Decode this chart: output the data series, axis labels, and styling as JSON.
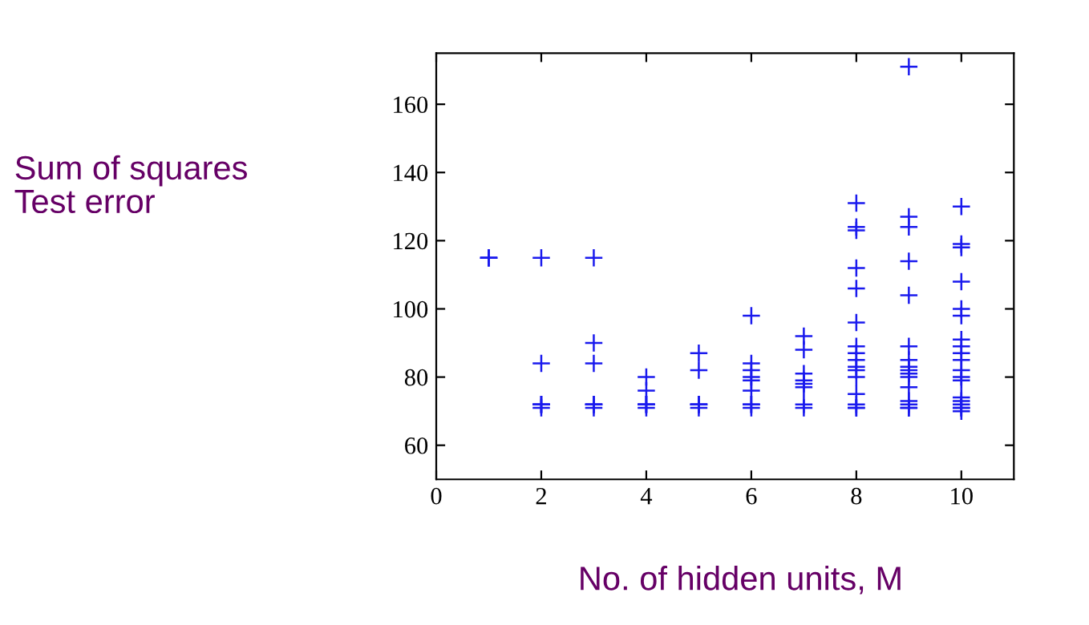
{
  "chart_data": {
    "type": "scatter",
    "xlabel": "No. of hidden units, M",
    "ylabel": "Sum of squares\nTest error",
    "marker": "cross",
    "grid": false,
    "legend": false,
    "xlim": [
      0,
      11
    ],
    "ylim": [
      50,
      175
    ],
    "xticks": [
      0,
      2,
      4,
      6,
      8,
      10
    ],
    "yticks": [
      60,
      80,
      100,
      120,
      140,
      160
    ],
    "series": [
      {
        "color": "#1a1aee",
        "x": [
          1,
          1,
          1,
          2,
          2,
          2,
          2,
          2,
          2,
          3,
          3,
          3,
          3,
          3,
          3,
          3,
          4,
          4,
          4,
          4,
          4,
          4,
          5,
          5,
          5,
          5,
          5,
          5,
          6,
          6,
          6,
          6,
          6,
          6,
          6,
          6,
          6,
          7,
          7,
          7,
          7,
          7,
          7,
          7,
          7,
          8,
          8,
          8,
          8,
          8,
          8,
          8,
          8,
          8,
          8,
          8,
          8,
          8,
          8,
          8,
          8,
          9,
          9,
          9,
          9,
          9,
          9,
          9,
          9,
          9,
          9,
          9,
          9,
          9,
          9,
          9,
          9,
          10,
          10,
          10,
          10,
          10,
          10,
          10,
          10,
          10,
          10,
          10,
          10,
          10,
          10,
          10,
          10,
          10,
          10,
          10
        ],
        "values": [
          115,
          115,
          115,
          115,
          84,
          72,
          72,
          71,
          72,
          115,
          90,
          84,
          72,
          72,
          71,
          72,
          80,
          76,
          72,
          72,
          71,
          72,
          87,
          82,
          72,
          72,
          71,
          72,
          98,
          84,
          82,
          80,
          79,
          76,
          72,
          72,
          71,
          92,
          88,
          81,
          79,
          78,
          77,
          72,
          71,
          131,
          124,
          123,
          112,
          106,
          96,
          89,
          87,
          85,
          83,
          82,
          80,
          75,
          72,
          71,
          71,
          171,
          127,
          124,
          114,
          104,
          89,
          85,
          83,
          82,
          81,
          80,
          77,
          73,
          72,
          71,
          71,
          130,
          119,
          118,
          108,
          100,
          98,
          91,
          89,
          87,
          85,
          82,
          80,
          79,
          74,
          73,
          72,
          71,
          71,
          70
        ]
      }
    ]
  }
}
